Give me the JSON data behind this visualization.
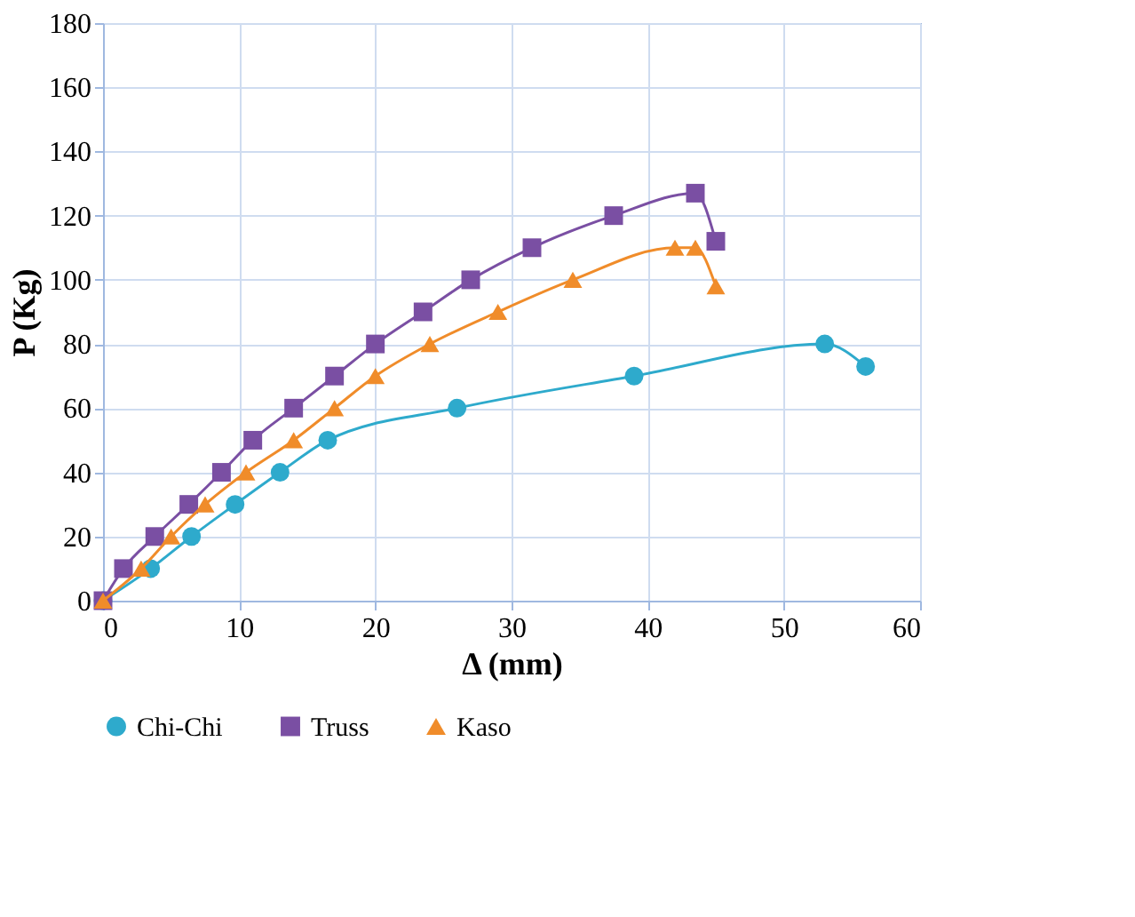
{
  "chart_data": {
    "type": "line",
    "xlabel": "Δ (mm)",
    "ylabel": "P (Kg)",
    "xlim": [
      0,
      60
    ],
    "xticks": [
      0,
      10,
      20,
      30,
      40,
      50,
      60
    ],
    "ylim": [
      0,
      180
    ],
    "yticks": [
      0,
      20,
      40,
      60,
      80,
      100,
      120,
      140,
      160,
      180
    ],
    "grid": true,
    "legend": "bottom",
    "line_style": "solid",
    "series": [
      {
        "name": "Chi-Chi",
        "color": "#2eaacc",
        "marker": "circle",
        "x": [
          0,
          3.5,
          6.5,
          9.7,
          13,
          16.5,
          26,
          39,
          53,
          56
        ],
        "values": [
          0,
          10,
          20,
          30,
          40,
          50,
          60,
          70,
          80,
          73
        ]
      },
      {
        "name": "Truss",
        "color": "#7a4fa3",
        "marker": "square",
        "x": [
          0,
          1.5,
          3.8,
          6.3,
          8.7,
          11,
          14,
          17,
          20,
          23.5,
          27,
          31.5,
          37.5,
          43.5,
          45
        ],
        "values": [
          0,
          10,
          20,
          30,
          40,
          50,
          60,
          70,
          80,
          90,
          100,
          110,
          120,
          127,
          112
        ]
      },
      {
        "name": "Kaso",
        "color": "#f08c2a",
        "marker": "triangle",
        "x": [
          0,
          2.8,
          5,
          7.5,
          10.5,
          14,
          17,
          20,
          24,
          29,
          34.5,
          42,
          43.5,
          45
        ],
        "values": [
          0,
          10,
          20,
          30,
          40,
          50,
          60,
          70,
          80,
          90,
          100,
          110,
          110,
          98
        ]
      }
    ]
  }
}
